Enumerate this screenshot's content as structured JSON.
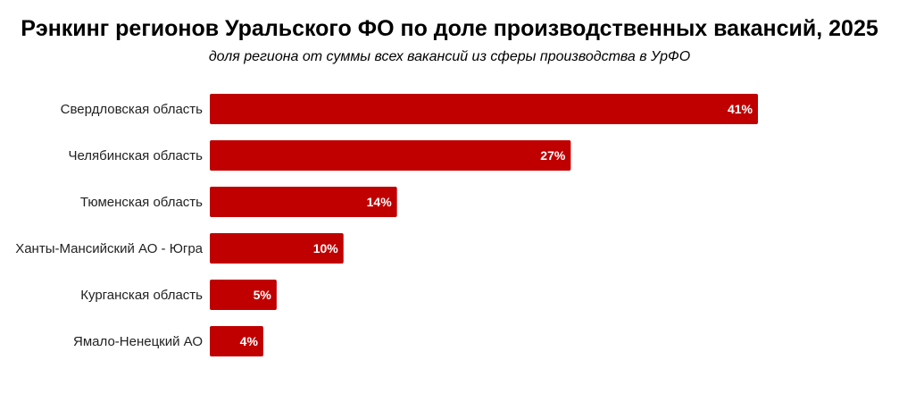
{
  "chart_data": {
    "type": "bar",
    "orientation": "horizontal",
    "title": "Рэнкинг регионов Уральского ФО по доле производственных вакансий, 2025",
    "subtitle": "доля региона от суммы всех вакансий из сферы производства в УрФО",
    "categories": [
      "Свердловская область",
      "Челябинская область",
      "Тюменская область",
      "Ханты-Мансийский АО - Югра",
      "Курганская область",
      "Ямало-Ненецкий АО"
    ],
    "values": [
      41,
      27,
      14,
      10,
      5,
      4
    ],
    "data_labels": [
      "41%",
      "27%",
      "14%",
      "10%",
      "5%",
      "4%"
    ],
    "unit": "%",
    "xlim": [
      0,
      41
    ],
    "grid": false,
    "legend": "none",
    "bar_color": "#C00000"
  }
}
